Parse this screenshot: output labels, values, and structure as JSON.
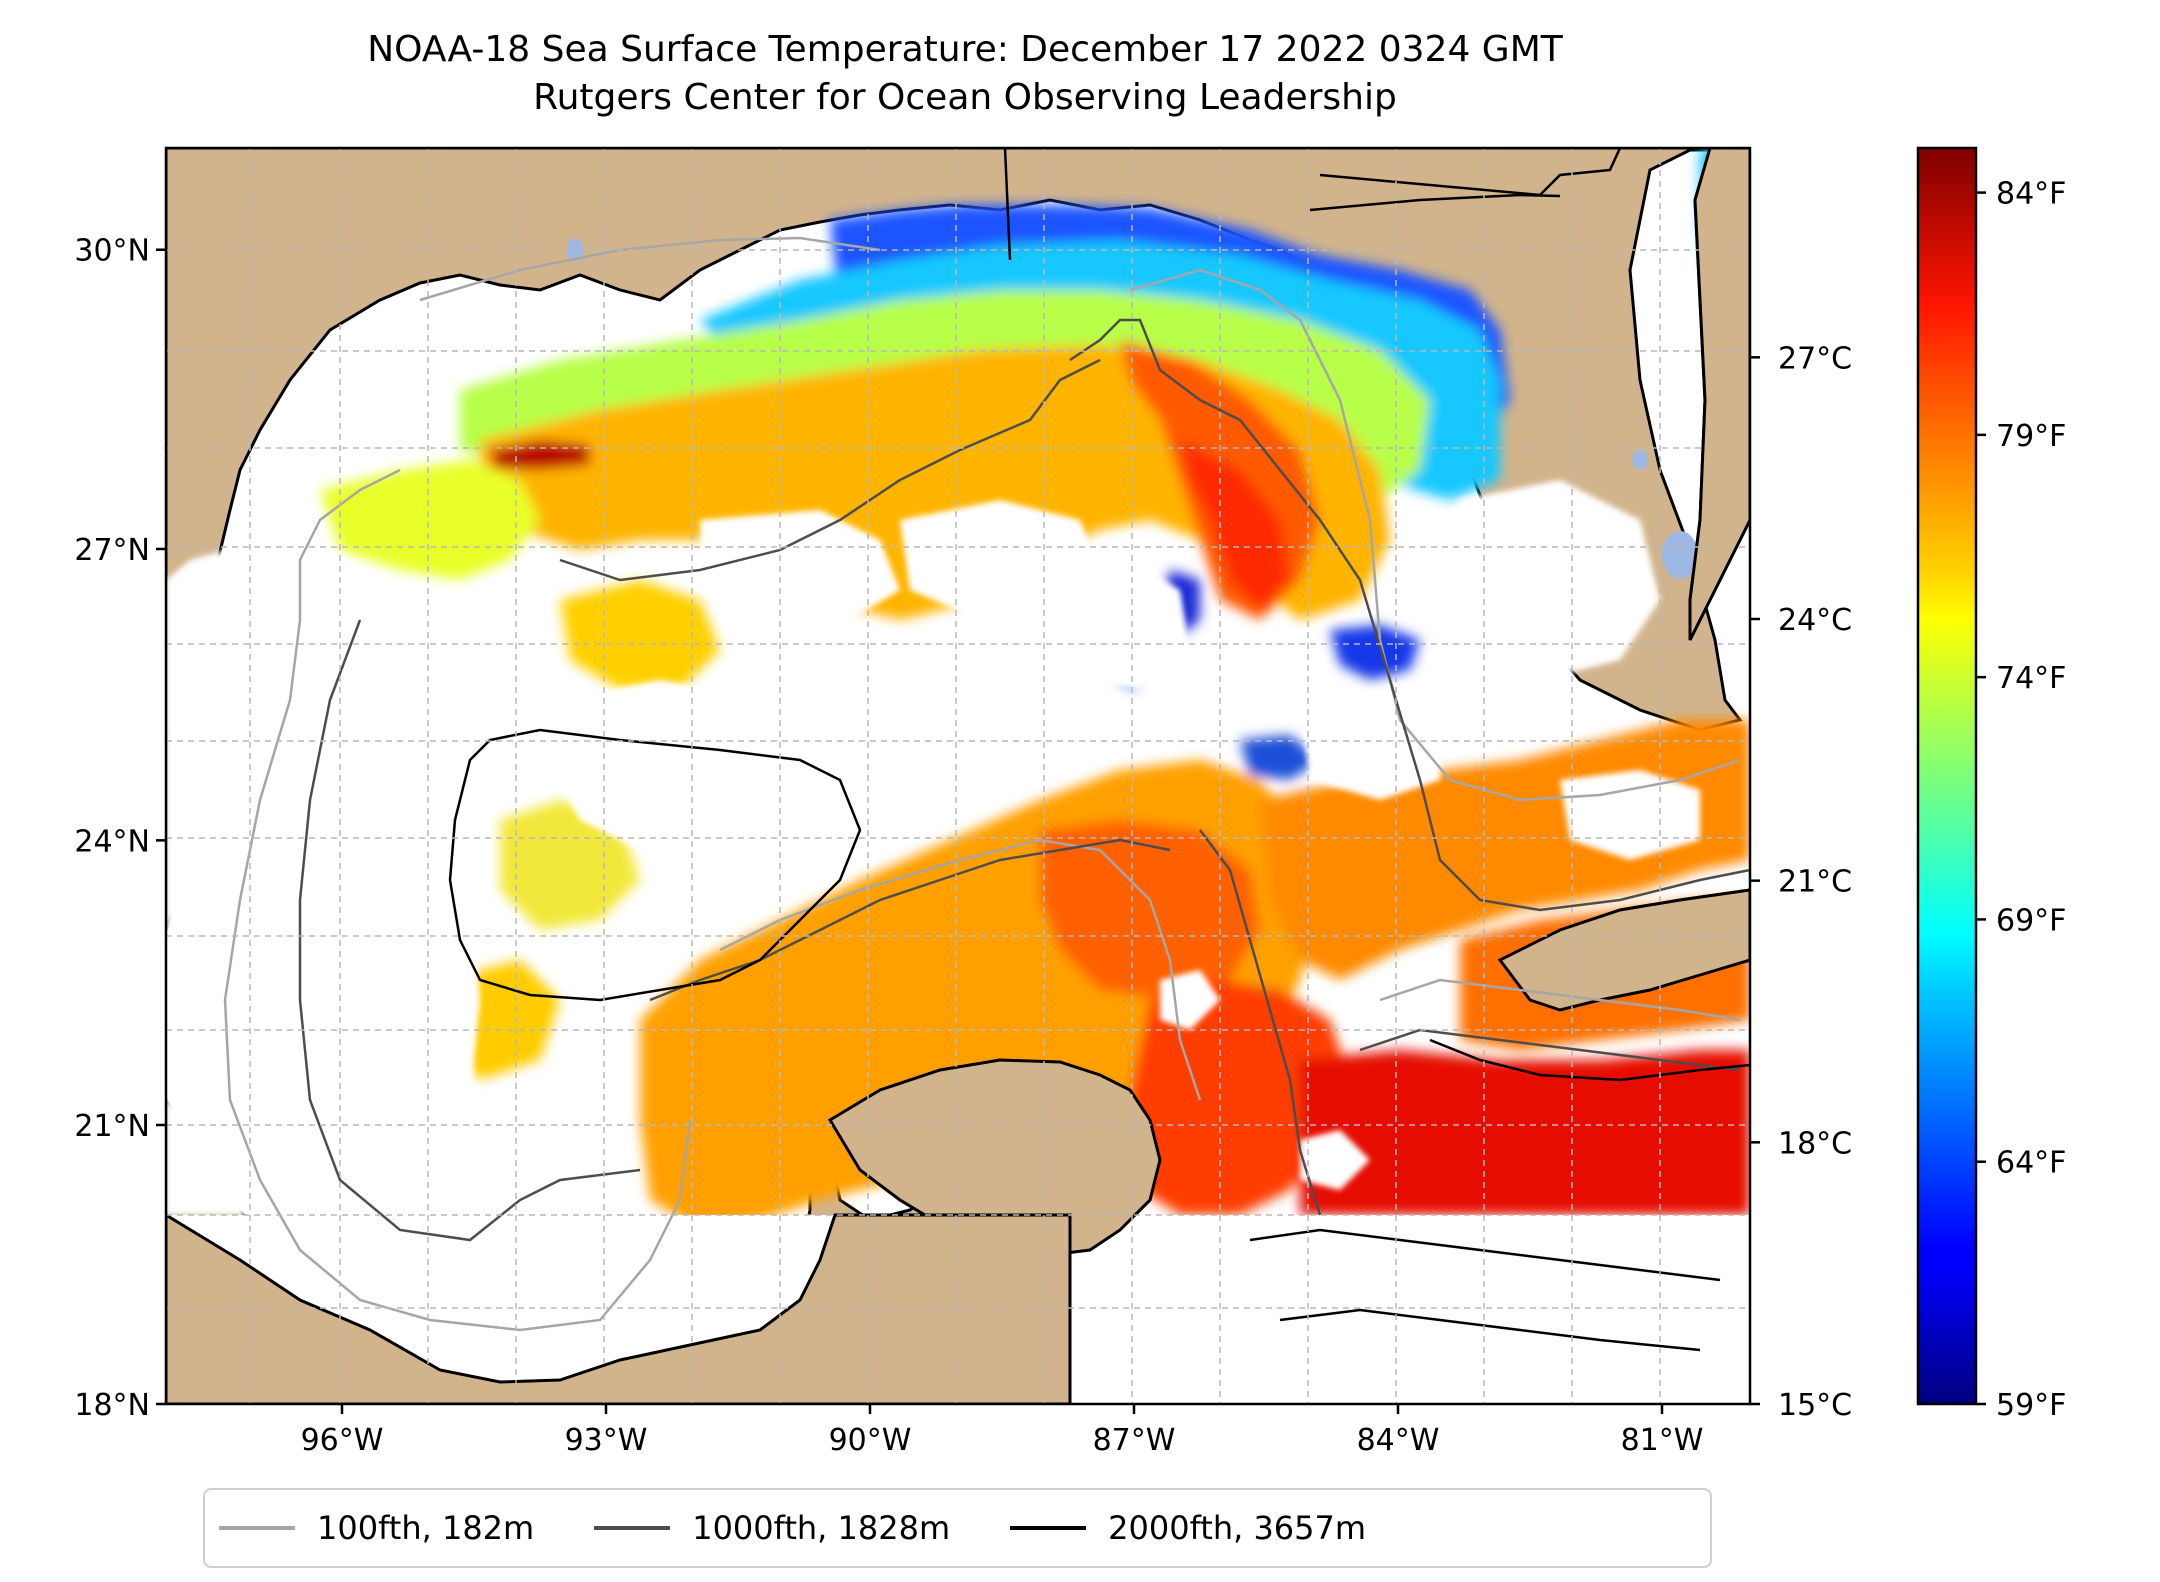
{
  "title": "NOAA-18 Sea Surface Temperature: December 17 2022 0324 GMT",
  "subtitle": "Rutgers Center for Ocean Observing Leadership",
  "map": {
    "lat_range": [
      18,
      31
    ],
    "lon_range": [
      -98,
      -80
    ],
    "lat_labels": [
      "30°N",
      "27°N",
      "24°N",
      "21°N",
      "18°N"
    ],
    "lat_values": [
      30,
      27,
      24,
      21,
      18
    ],
    "lon_labels": [
      "96°W",
      "93°W",
      "90°W",
      "87°W",
      "84°W",
      "81°W"
    ],
    "lon_values": [
      -96,
      -93,
      -90,
      -87,
      -84,
      -81
    ],
    "gridlines": true,
    "land_color": "#d2b48c",
    "lake_color": "#9db8e3",
    "no_data_color": "#ffffff"
  },
  "colorbar": {
    "colormap": "jet",
    "celsius_labels": [
      "27°C",
      "24°C",
      "21°C",
      "18°C",
      "15°C"
    ],
    "celsius_values": [
      27,
      24,
      21,
      18,
      15
    ],
    "fahrenheit_labels": [
      "84°F",
      "79°F",
      "74°F",
      "69°F",
      "64°F",
      "59°F"
    ],
    "fahrenheit_values": [
      84,
      79,
      74,
      69,
      64,
      59
    ],
    "range_celsius": [
      15,
      29.4
    ]
  },
  "legend": {
    "items": [
      {
        "label": "100fth, 182m",
        "color": "#a6a6a6"
      },
      {
        "label": "1000fth, 1828m",
        "color": "#4d4d4d"
      },
      {
        "label": "2000fth, 3657m",
        "color": "#000000"
      }
    ]
  }
}
